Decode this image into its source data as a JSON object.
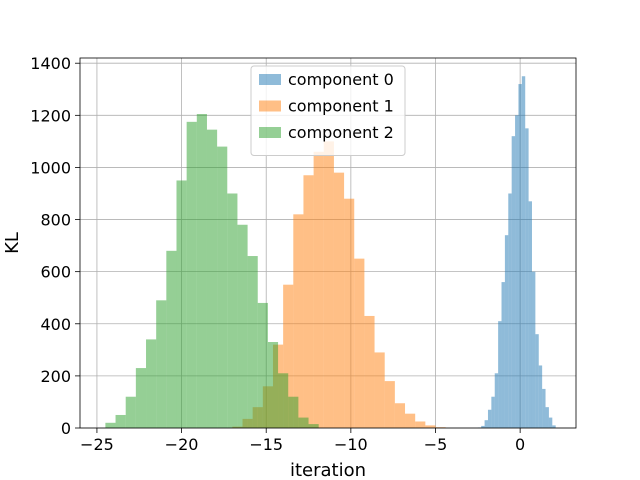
{
  "chart_data": {
    "type": "histogram",
    "title": "",
    "xlabel": "iteration",
    "ylabel": "KL",
    "xlim": [
      -26,
      3.3
    ],
    "ylim": [
      0,
      1420
    ],
    "xticks": [
      -25,
      -20,
      -15,
      -10,
      -5,
      0
    ],
    "xtick_labels": [
      "−25",
      "−20",
      "−15",
      "−10",
      "−5",
      "0"
    ],
    "yticks": [
      0,
      200,
      400,
      600,
      800,
      1000,
      1200,
      1400
    ],
    "ytick_labels": [
      "0",
      "200",
      "400",
      "600",
      "800",
      "1000",
      "1200",
      "1400"
    ],
    "grid": true,
    "legend_position": "upper center",
    "alpha": 0.5,
    "series": [
      {
        "name": "component 0",
        "color": "#1f77b4",
        "bin_start": -2.5,
        "bin_width": 0.2,
        "counts": [
          2,
          8,
          30,
          70,
          120,
          210,
          410,
          560,
          740,
          900,
          1120,
          1200,
          1320,
          1350,
          1150,
          870,
          600,
          360,
          240,
          150,
          80,
          40,
          10
        ]
      },
      {
        "name": "component 1",
        "color": "#ff7f0e",
        "bin_start": -17.0,
        "bin_width": 0.6,
        "counts": [
          5,
          35,
          80,
          160,
          320,
          550,
          820,
          970,
          1060,
          1100,
          980,
          880,
          650,
          430,
          290,
          180,
          95,
          55,
          25,
          10,
          3
        ]
      },
      {
        "name": "component 2",
        "color": "#2ca02c",
        "bin_start": -24.5,
        "bin_width": 0.6,
        "counts": [
          20,
          50,
          120,
          230,
          340,
          490,
          680,
          950,
          1175,
          1205,
          1145,
          1080,
          900,
          780,
          660,
          480,
          330,
          210,
          120,
          40,
          15
        ]
      }
    ]
  }
}
